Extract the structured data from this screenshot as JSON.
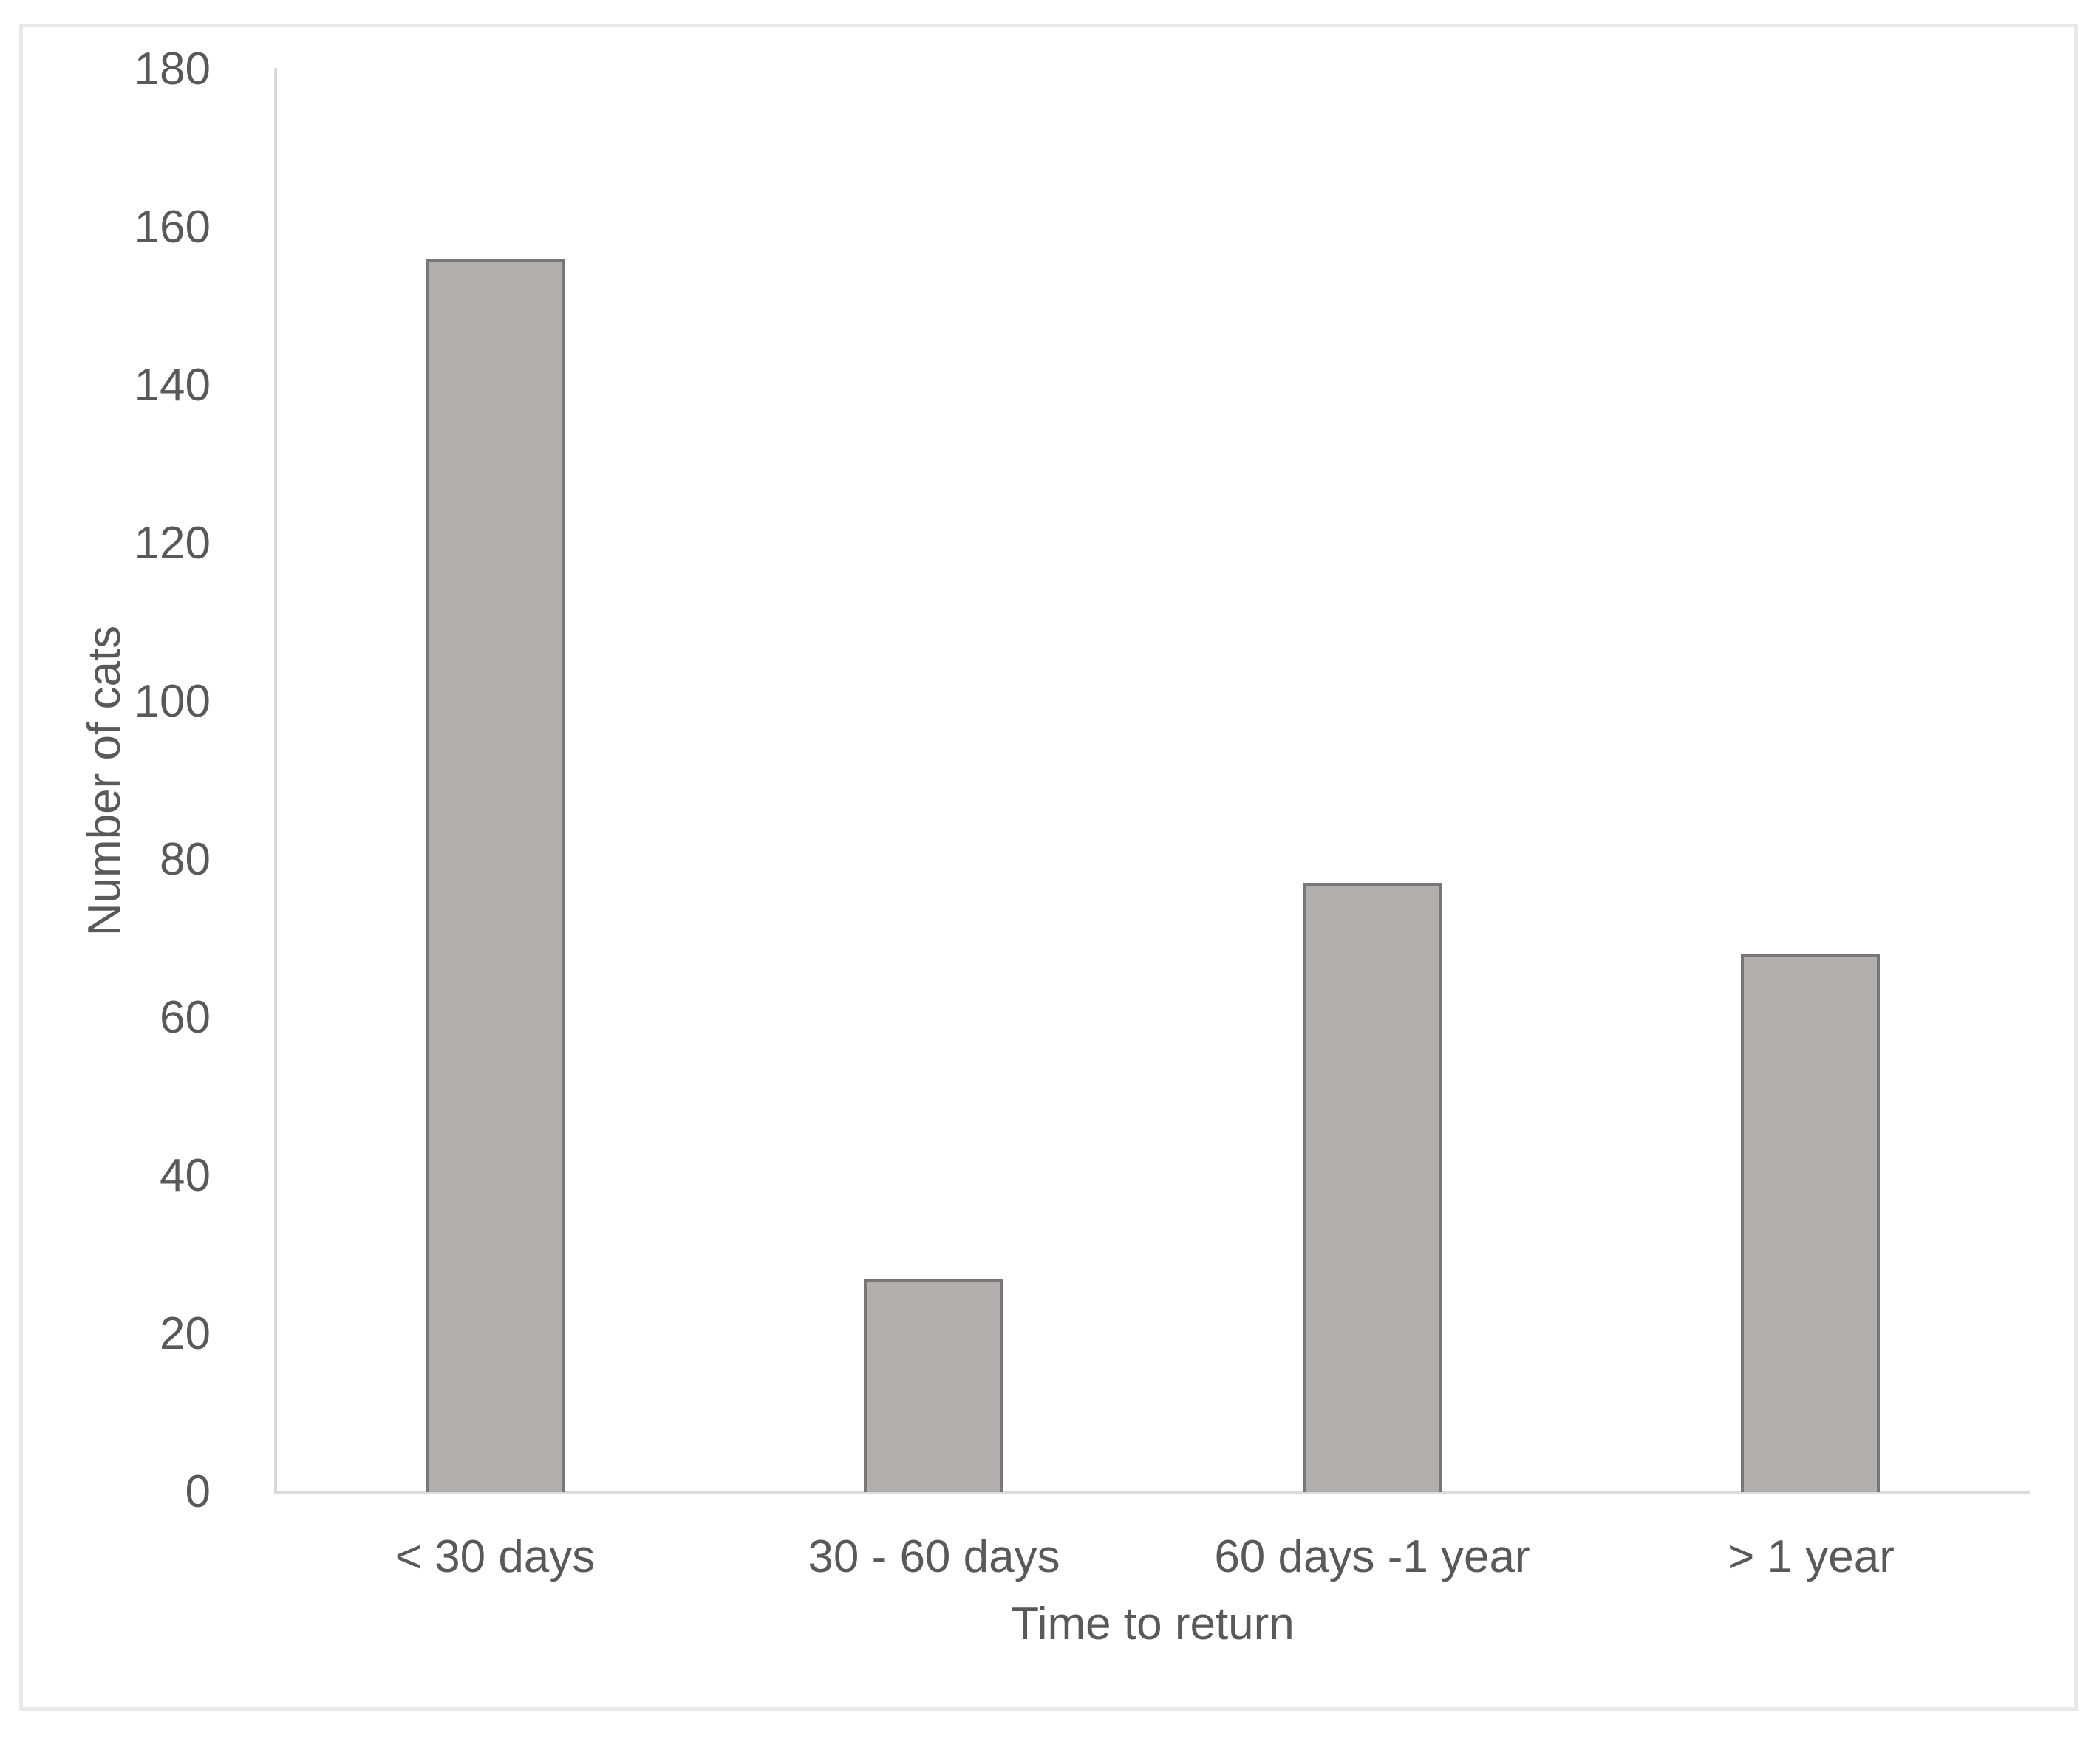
{
  "figure": {
    "background": "#ffffff",
    "frame_color": "#e8e8e8"
  },
  "chart_data": {
    "type": "bar",
    "title": "",
    "categories": [
      "< 30 days",
      "30 - 60 days",
      "60 days -1 year",
      "> 1 year"
    ],
    "values": [
      156,
      27,
      77,
      68
    ],
    "xlabel": "Time to return",
    "ylabel": "Number of cats",
    "ylim": [
      0,
      180
    ],
    "ytick_step": 20,
    "ytick_labels": [
      "0",
      "20",
      "40",
      "60",
      "80",
      "100",
      "120",
      "140",
      "160",
      "180"
    ],
    "grid": false,
    "legend": false,
    "bar_fill": "#b2aeac",
    "bar_border": "#7a7676",
    "axis_line_color": "#d9d9d9",
    "text_color": "#595959"
  }
}
